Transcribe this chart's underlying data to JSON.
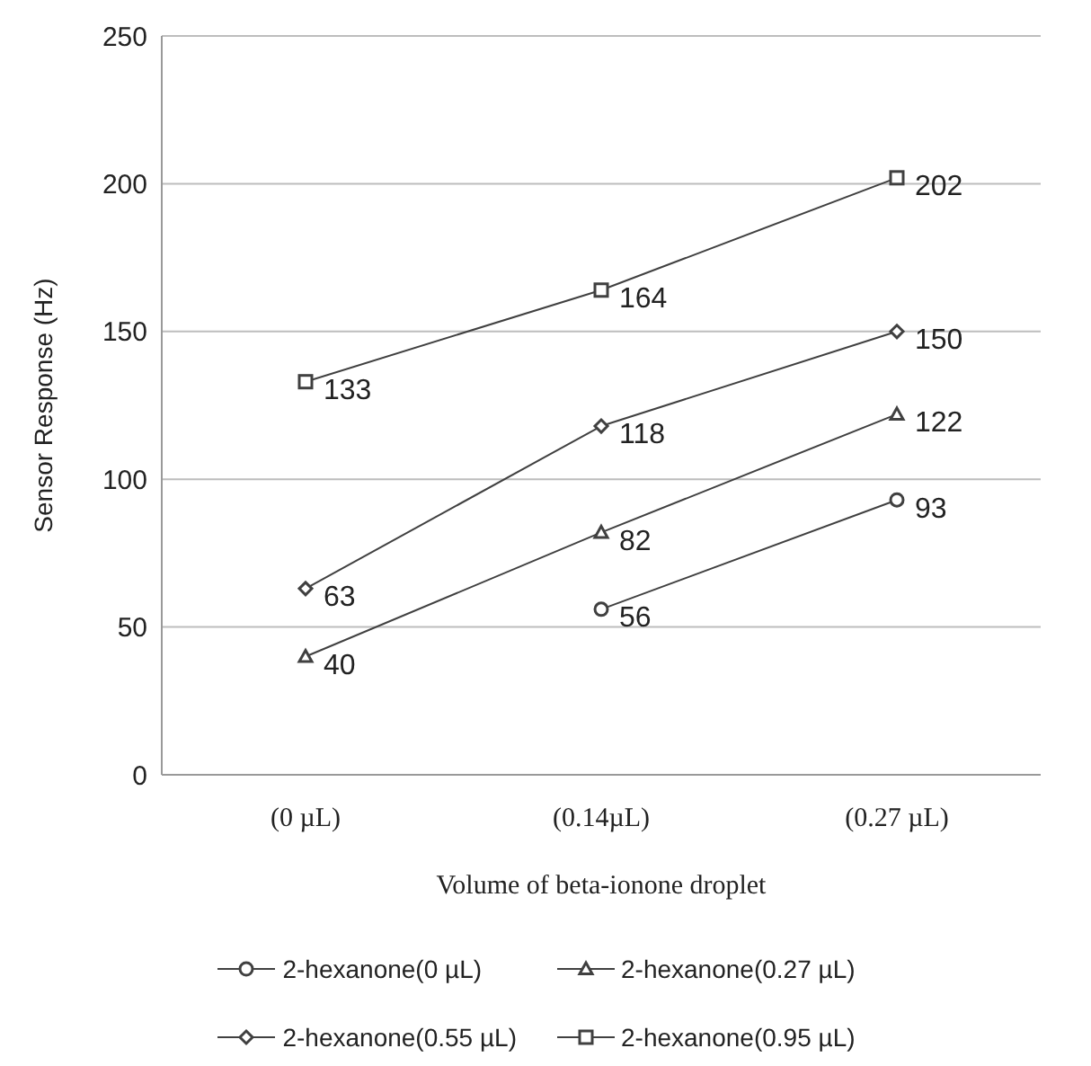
{
  "chart_data": {
    "type": "line",
    "xlabel": "Volume of beta-ionone droplet",
    "ylabel": "Sensor Response (Hz)",
    "categories": [
      "(0 µL)",
      "(0.14µL)",
      "(0.27 µL)"
    ],
    "series": [
      {
        "name": "2-hexanone(0 µL)",
        "color": "#404040",
        "marker": "circle",
        "values": [
          null,
          56,
          93
        ]
      },
      {
        "name": "2-hexanone(0.27 µL)",
        "color": "#404040",
        "marker": "triangle",
        "values": [
          40,
          82,
          122
        ]
      },
      {
        "name": "2-hexanone(0.55 µL)",
        "color": "#404040",
        "marker": "diamond",
        "values": [
          63,
          118,
          150
        ]
      },
      {
        "name": "2-hexanone(0.95 µL)",
        "color": "#404040",
        "marker": "square",
        "values": [
          133,
          164,
          202
        ]
      }
    ],
    "ylim": [
      0,
      250
    ],
    "yticks": [
      0,
      50,
      100,
      150,
      200,
      250
    ],
    "grid": "y",
    "legend": "bottom",
    "data_labels": true,
    "line_style": "solid"
  }
}
